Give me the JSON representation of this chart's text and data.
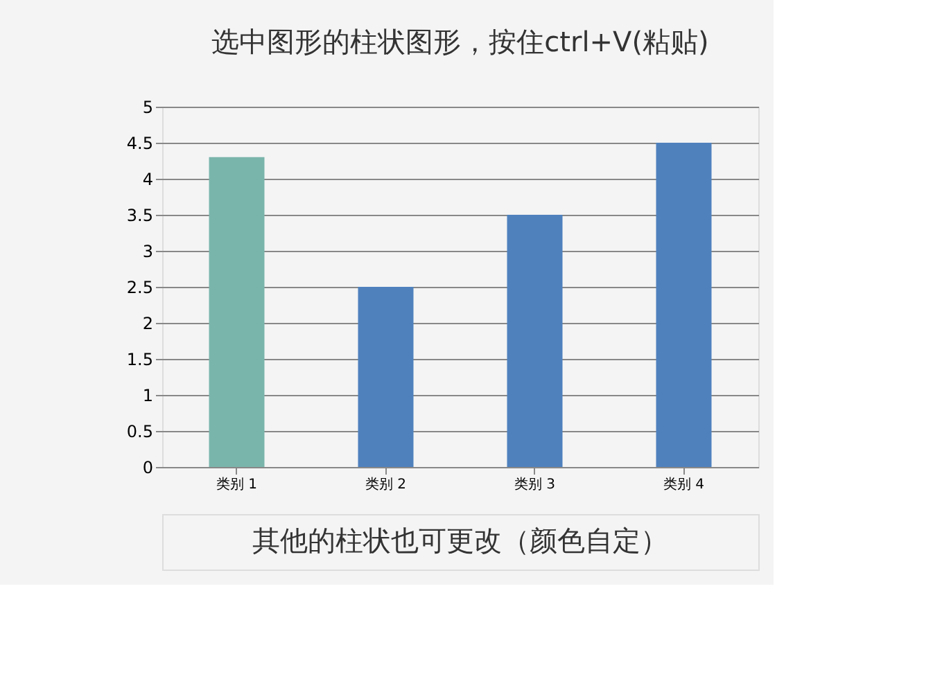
{
  "chart_data": {
    "type": "bar",
    "title": "选中图形的柱状图形，按住ctrl+V(粘贴)",
    "categories": [
      "类别 1",
      "类别 2",
      "类别 3",
      "类别 4"
    ],
    "values": [
      4.3,
      2.5,
      3.5,
      4.5
    ],
    "colors": [
      "#7ab5ab",
      "#4f81bd",
      "#4f81bd",
      "#4f81bd"
    ],
    "ylim": [
      0,
      5
    ],
    "yticks": [
      0,
      0.5,
      1,
      1.5,
      2,
      2.5,
      3,
      3.5,
      4,
      4.5,
      5
    ],
    "grid": "y",
    "annotations": [
      "其他的柱状也可更改（颜色自定）"
    ]
  }
}
